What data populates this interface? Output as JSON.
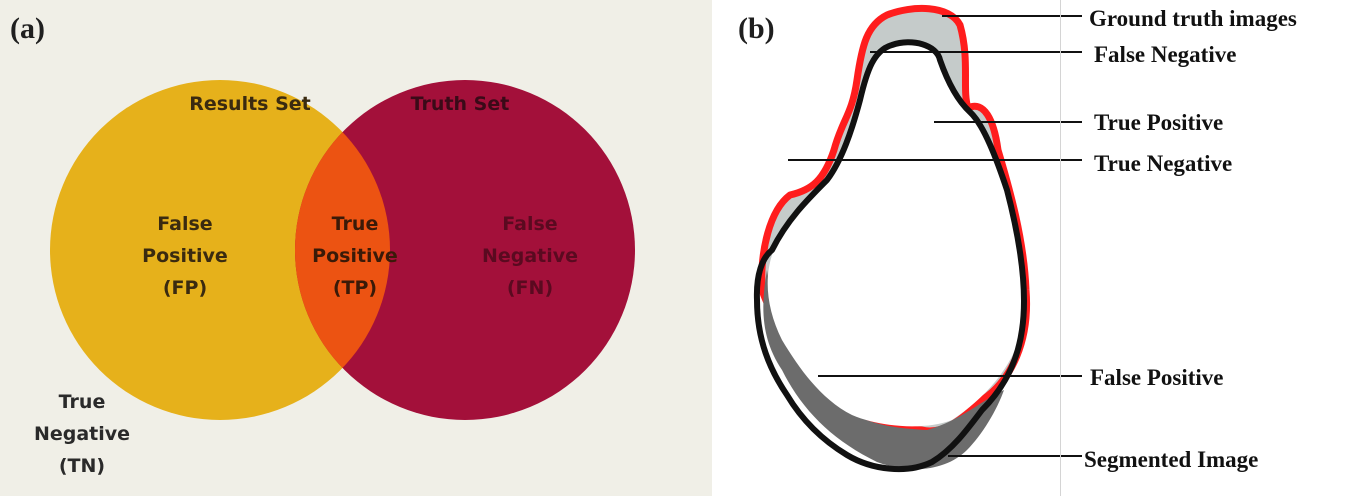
{
  "panel_a": {
    "label": "(a)",
    "results_set": "Results Set",
    "truth_set": "Truth Set",
    "false_positive": [
      "False",
      "Positive",
      "(FP)"
    ],
    "true_positive": [
      "True",
      "Positive",
      "(TP)"
    ],
    "false_negative": [
      "False",
      "Negative",
      "(FN)"
    ],
    "true_negative": [
      "True",
      "Negative",
      "(TN)"
    ],
    "colors": {
      "background": "#f0efe7",
      "results_circle": "#e6b11b",
      "truth_circle": "#a3103a",
      "overlap": "#ec5312"
    }
  },
  "panel_b": {
    "label": "(b)",
    "callouts": {
      "ground_truth": "Ground truth images",
      "false_negative": "False Negative",
      "true_positive": "True Positive",
      "true_negative": "True Negative",
      "false_positive": "False Positive",
      "segmented": "Segmented Image"
    },
    "colors": {
      "ground_truth_outline": "#ff1d1d",
      "segmented_outline": "#111111",
      "false_negative_fill": "#c5cbca",
      "false_positive_fill": "#6c6c6c"
    }
  }
}
